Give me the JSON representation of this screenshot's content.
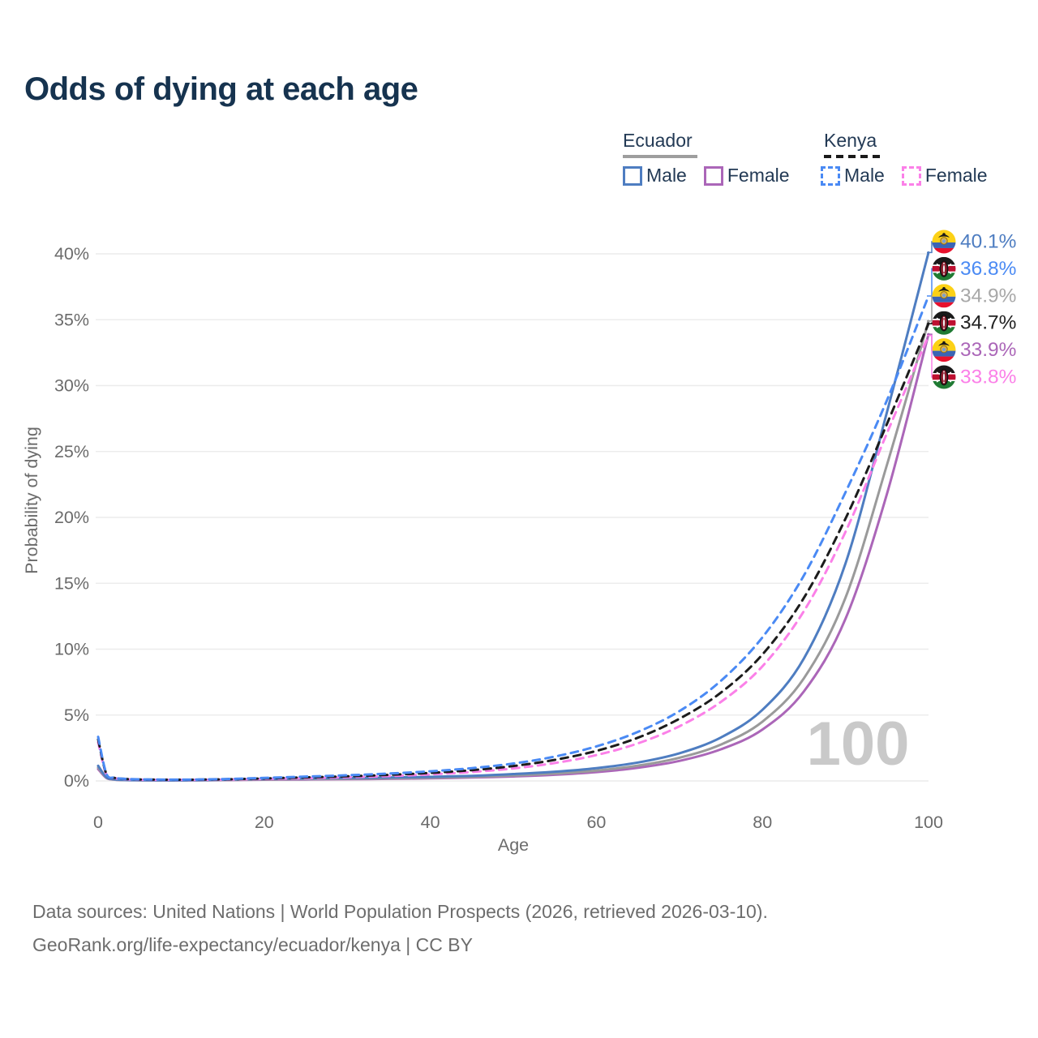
{
  "title": "Odds of dying at each age",
  "legend": {
    "groups": [
      {
        "country": "Ecuador",
        "underline_style": "solid",
        "underline_color": "#9e9e9e",
        "items": [
          {
            "label": "Male",
            "color": "#4e7dc1",
            "dashed": false
          },
          {
            "label": "Female",
            "color": "#ab66b8",
            "dashed": false
          }
        ]
      },
      {
        "country": "Kenya",
        "underline_style": "dashed",
        "underline_color": "#1a1a1a",
        "items": [
          {
            "label": "Male",
            "color": "#4a8af4",
            "dashed": true
          },
          {
            "label": "Female",
            "color": "#fb80e8",
            "dashed": true
          }
        ]
      }
    ]
  },
  "watermark": "100",
  "footer": {
    "line1": "Data sources: United Nations | World Population Prospects (2026, retrieved 2026-03-10).",
    "line2": "GeoRank.org/life-expectancy/ecuador/kenya | CC BY"
  },
  "chart_data": {
    "type": "line",
    "title": "Odds of dying at each age",
    "xlabel": "Age",
    "ylabel": "Probability of dying",
    "xlim": [
      0,
      100
    ],
    "ylim": [
      0,
      40
    ],
    "x_ticks": [
      0,
      20,
      40,
      60,
      80,
      100
    ],
    "y_ticks": [
      0,
      5,
      10,
      15,
      20,
      25,
      30,
      35,
      40
    ],
    "y_tick_suffix": "%",
    "grid": "horizontal",
    "legend_position": "top-right",
    "x": [
      0,
      1,
      2,
      3,
      5,
      10,
      15,
      20,
      25,
      30,
      35,
      40,
      45,
      50,
      55,
      60,
      65,
      70,
      75,
      80,
      85,
      90,
      95,
      100
    ],
    "series": [
      {
        "name": "Ecuador Male",
        "country": "Ecuador",
        "sex": "Male",
        "flag": "ecuador",
        "color": "#4e7dc1",
        "dash": null,
        "end_value": 40.1,
        "end_label": "40.1%",
        "label_color": "#4e7dc1",
        "values": [
          1.15,
          0.28,
          0.12,
          0.08,
          0.06,
          0.05,
          0.09,
          0.15,
          0.19,
          0.22,
          0.26,
          0.31,
          0.39,
          0.52,
          0.7,
          0.97,
          1.4,
          2.1,
          3.3,
          5.4,
          9.3,
          16.5,
          28.0,
          40.1
        ]
      },
      {
        "name": "Kenya Male",
        "country": "Kenya",
        "sex": "Male",
        "flag": "kenya",
        "color": "#4a8af4",
        "dash": "9 7",
        "end_value": 36.8,
        "end_label": "36.8%",
        "label_color": "#4a8af4",
        "values": [
          3.35,
          0.55,
          0.25,
          0.17,
          0.12,
          0.1,
          0.14,
          0.23,
          0.33,
          0.43,
          0.56,
          0.73,
          0.97,
          1.32,
          1.85,
          2.62,
          3.72,
          5.3,
          7.6,
          10.9,
          15.6,
          21.9,
          28.9,
          36.8
        ]
      },
      {
        "name": "Ecuador Both sexes",
        "country": "Ecuador",
        "sex": "Both",
        "flag": "ecuador",
        "color": "#9a9a9a",
        "dash": null,
        "end_value": 34.9,
        "end_label": "34.9%",
        "label_color": "#a8a8a8",
        "values": [
          1.02,
          0.25,
          0.1,
          0.07,
          0.055,
          0.045,
          0.075,
          0.115,
          0.145,
          0.17,
          0.2,
          0.245,
          0.31,
          0.41,
          0.56,
          0.79,
          1.16,
          1.76,
          2.76,
          4.5,
          7.8,
          13.9,
          24.0,
          34.9
        ]
      },
      {
        "name": "Kenya Both sexes",
        "country": "Kenya",
        "sex": "Both",
        "flag": "kenya",
        "color": "#1c1c1c",
        "dash": "9 7",
        "end_value": 34.7,
        "end_label": "34.7%",
        "label_color": "#222222",
        "values": [
          3.15,
          0.52,
          0.23,
          0.16,
          0.11,
          0.09,
          0.12,
          0.19,
          0.27,
          0.35,
          0.46,
          0.61,
          0.82,
          1.13,
          1.6,
          2.28,
          3.28,
          4.72,
          6.7,
          9.6,
          13.9,
          19.9,
          27.1,
          34.7
        ]
      },
      {
        "name": "Ecuador Female",
        "country": "Ecuador",
        "sex": "Female",
        "flag": "ecuador",
        "color": "#ab66b8",
        "dash": null,
        "end_value": 33.9,
        "end_label": "33.9%",
        "label_color": "#ab66b8",
        "values": [
          0.9,
          0.22,
          0.09,
          0.065,
          0.05,
          0.04,
          0.06,
          0.09,
          0.11,
          0.13,
          0.16,
          0.2,
          0.26,
          0.34,
          0.47,
          0.67,
          1.0,
          1.52,
          2.4,
          3.9,
          6.8,
          12.3,
          21.8,
          33.9
        ]
      },
      {
        "name": "Kenya Female",
        "country": "Kenya",
        "sex": "Female",
        "flag": "kenya",
        "color": "#fb80e8",
        "dash": "9 7",
        "end_value": 33.8,
        "end_label": "33.8%",
        "label_color": "#fb80e8",
        "values": [
          2.95,
          0.49,
          0.22,
          0.15,
          0.1,
          0.085,
          0.105,
          0.155,
          0.21,
          0.28,
          0.37,
          0.5,
          0.68,
          0.95,
          1.36,
          1.96,
          2.85,
          4.15,
          6.0,
          8.7,
          12.9,
          18.9,
          26.4,
          33.8
        ]
      }
    ],
    "axis_color": "#6b6b6b",
    "gridline_color": "#ececec",
    "watermark_color": "#c9c9c9"
  }
}
